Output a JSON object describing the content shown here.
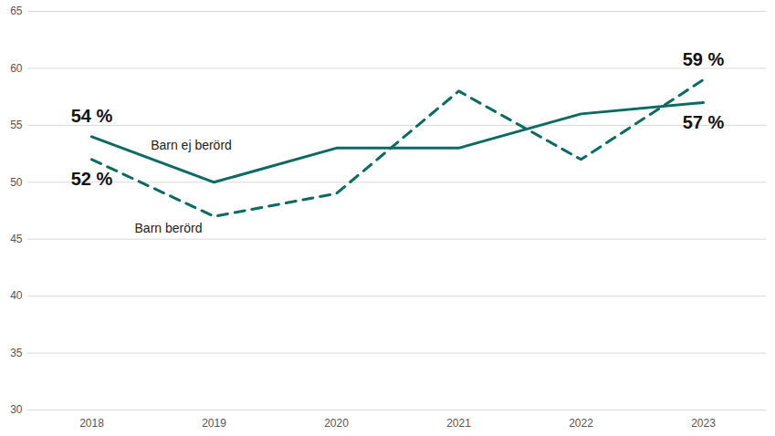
{
  "chart_data": {
    "type": "line",
    "categories": [
      "2018",
      "2019",
      "2020",
      "2021",
      "2022",
      "2023"
    ],
    "series": [
      {
        "name": "Barn ej berörd",
        "color": "#0b6b63",
        "line_style": "solid",
        "values": [
          54,
          50,
          53,
          53,
          56,
          57
        ],
        "value_labels": [
          "54 %",
          null,
          null,
          null,
          null,
          "57 %"
        ]
      },
      {
        "name": "Barn berörd",
        "color": "#0b6b63",
        "line_style": "dashed",
        "values": [
          52,
          47,
          49,
          58,
          52,
          59
        ],
        "value_labels": [
          "52 %",
          null,
          null,
          null,
          null,
          "59 %"
        ]
      }
    ],
    "ylim": [
      30,
      65
    ],
    "yticks": [
      30,
      35,
      40,
      45,
      50,
      55,
      60,
      65
    ],
    "grid": true,
    "data_labels": true
  }
}
